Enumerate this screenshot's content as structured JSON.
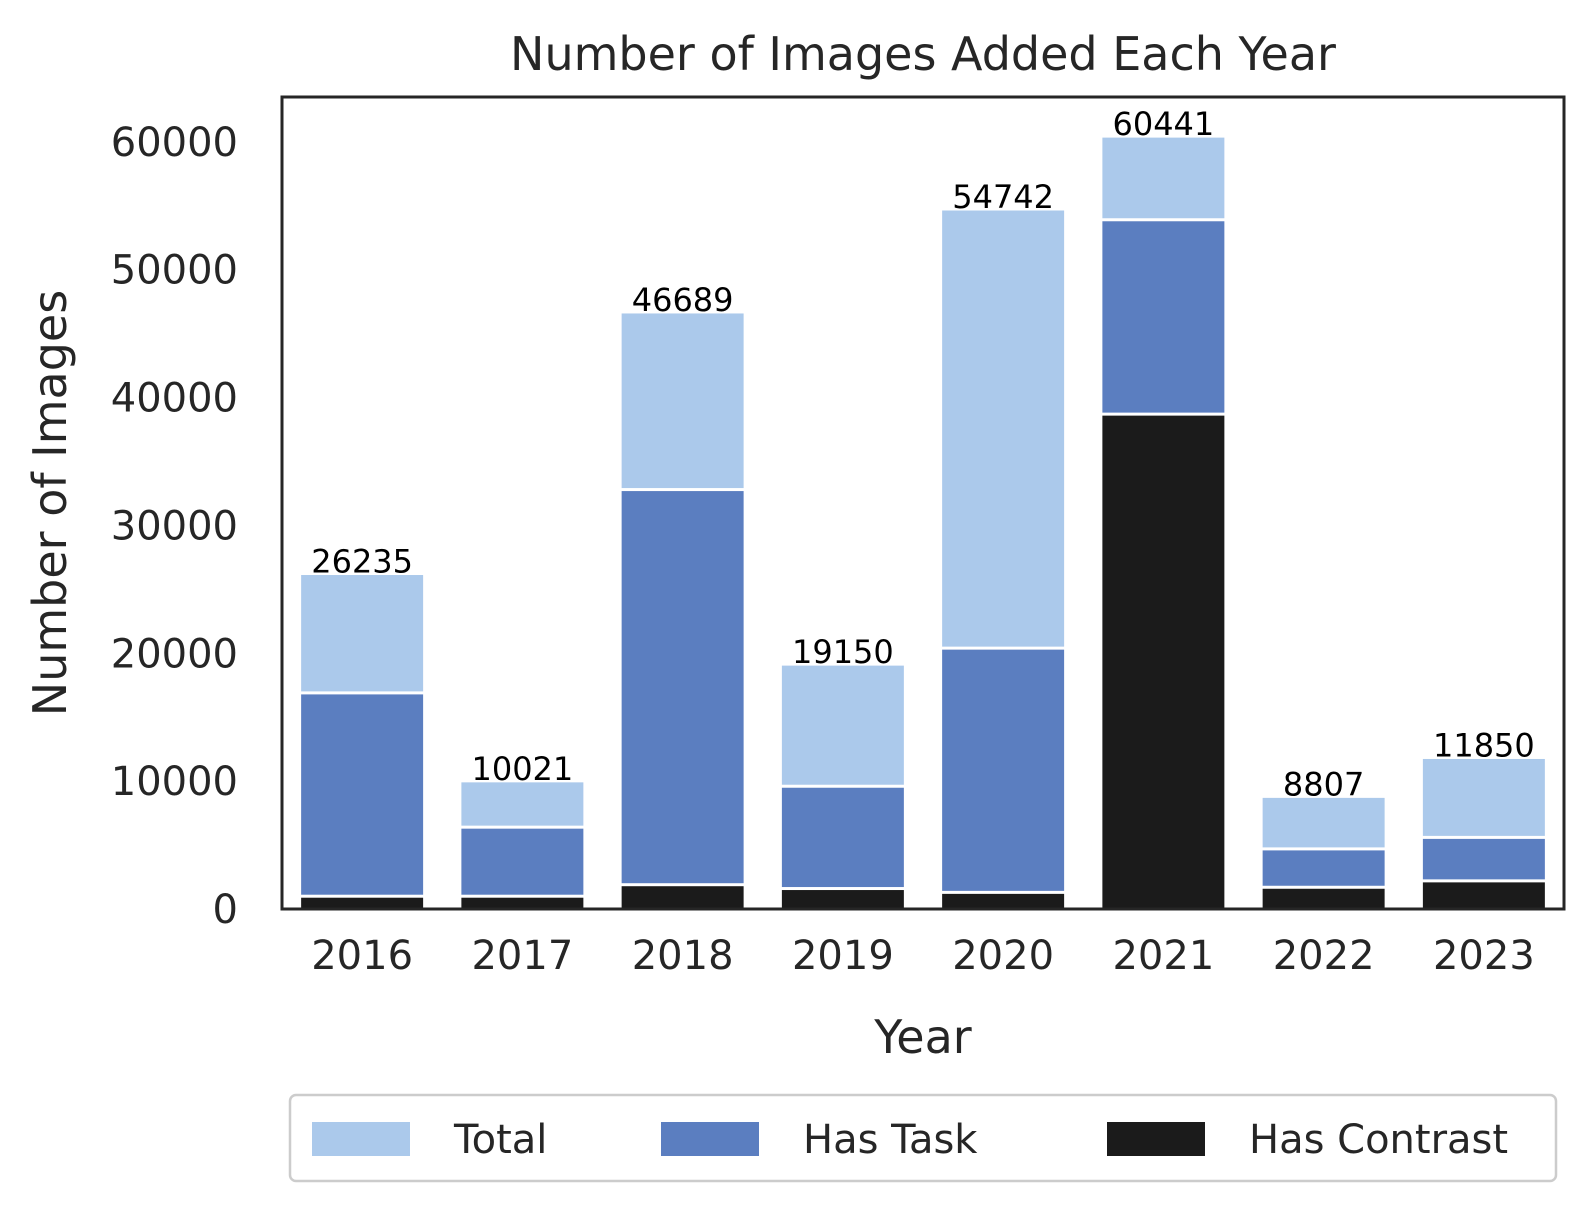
{
  "chart_data": {
    "type": "bar",
    "stacked": false,
    "overlaid": true,
    "title": "Number of Images Added Each Year",
    "xlabel": "Year",
    "ylabel": "Number of Images",
    "categories": [
      "2016",
      "2017",
      "2018",
      "2019",
      "2020",
      "2021",
      "2022",
      "2023"
    ],
    "ylim": [
      0,
      63500
    ],
    "yticks": [
      0,
      10000,
      20000,
      30000,
      40000,
      50000,
      60000
    ],
    "ytick_labels": [
      "0",
      "10000",
      "20000",
      "30000",
      "40000",
      "50000",
      "60000"
    ],
    "grid": false,
    "legend_position": "bottom-center",
    "series": [
      {
        "name": "Total",
        "color": "#abc9eb",
        "values": [
          26235,
          10021,
          46689,
          19150,
          54742,
          60441,
          8807,
          11850
        ]
      },
      {
        "name": "Has Task",
        "color": "#5b7ec0",
        "values": [
          16900,
          6400,
          32800,
          9600,
          20400,
          53900,
          4700,
          5600
        ]
      },
      {
        "name": "Has Contrast",
        "color": "#1b1b1b",
        "values": [
          1000,
          1000,
          1900,
          1600,
          1300,
          38700,
          1700,
          2200
        ]
      }
    ],
    "data_labels": [
      "26235",
      "10021",
      "46689",
      "19150",
      "54742",
      "60441",
      "8807",
      "11850"
    ]
  }
}
